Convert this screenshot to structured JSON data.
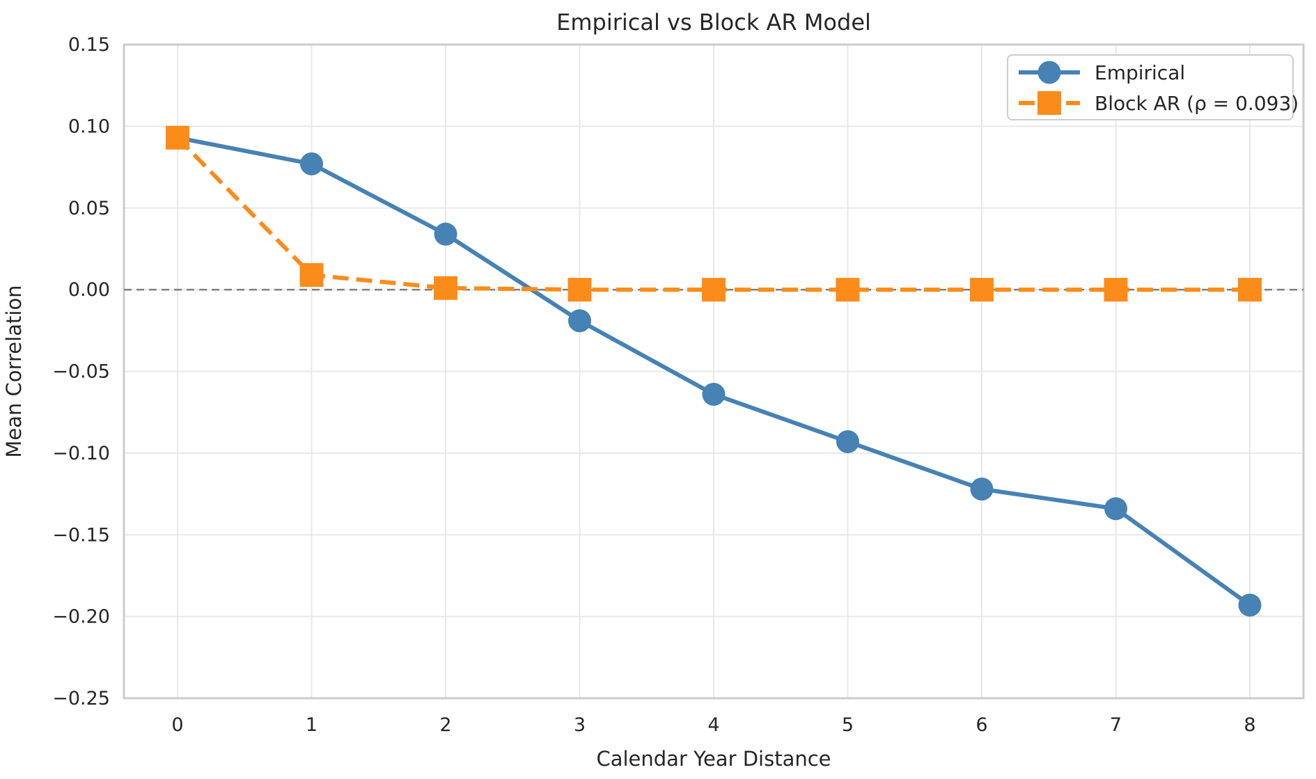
{
  "figure": {
    "background": "#ffffff",
    "text_color": "#262626",
    "grid_color": "#e8e8e8",
    "spine_color": "#cccccc"
  },
  "chart_data": {
    "type": "line",
    "title": "Empirical vs Block AR Model",
    "xlabel": "Calendar Year Distance",
    "ylabel": "Mean Correlation",
    "x": [
      0,
      1,
      2,
      3,
      4,
      5,
      6,
      7,
      8
    ],
    "series": [
      {
        "name": "Empirical",
        "color": "#4682b4",
        "linestyle": "solid",
        "marker": "circle",
        "values": [
          0.093,
          0.077,
          0.034,
          -0.019,
          -0.064,
          -0.093,
          -0.122,
          -0.134,
          -0.193
        ]
      },
      {
        "name": "Block AR (ρ = 0.093)",
        "color": "#fb8c1a",
        "linestyle": "dashed",
        "marker": "square",
        "values": [
          0.093,
          0.009,
          0.001,
          0.0,
          0.0,
          0.0,
          0.0,
          0.0,
          0.0
        ]
      }
    ],
    "xlim": [
      -0.4,
      8.4
    ],
    "ylim": [
      -0.25,
      0.15
    ],
    "xticks": {
      "values": [
        0,
        1,
        2,
        3,
        4,
        5,
        6,
        7,
        8
      ],
      "labels": [
        "0",
        "1",
        "2",
        "3",
        "4",
        "5",
        "6",
        "7",
        "8"
      ]
    },
    "yticks": {
      "values": [
        0.15,
        0.1,
        0.05,
        0.0,
        -0.05,
        -0.1,
        -0.15,
        -0.2,
        -0.25
      ],
      "labels": [
        "0.15",
        "0.10",
        "0.05",
        "0.00",
        "−0.05",
        "−0.10",
        "−0.15",
        "−0.20",
        "−0.25"
      ]
    },
    "grid": true,
    "zero_line": {
      "y": 0,
      "color": "#7f7f7f",
      "style": "dashed"
    },
    "legend": {
      "position": "upper right",
      "entries": [
        "Empirical",
        "Block AR (ρ = 0.093)"
      ]
    }
  }
}
